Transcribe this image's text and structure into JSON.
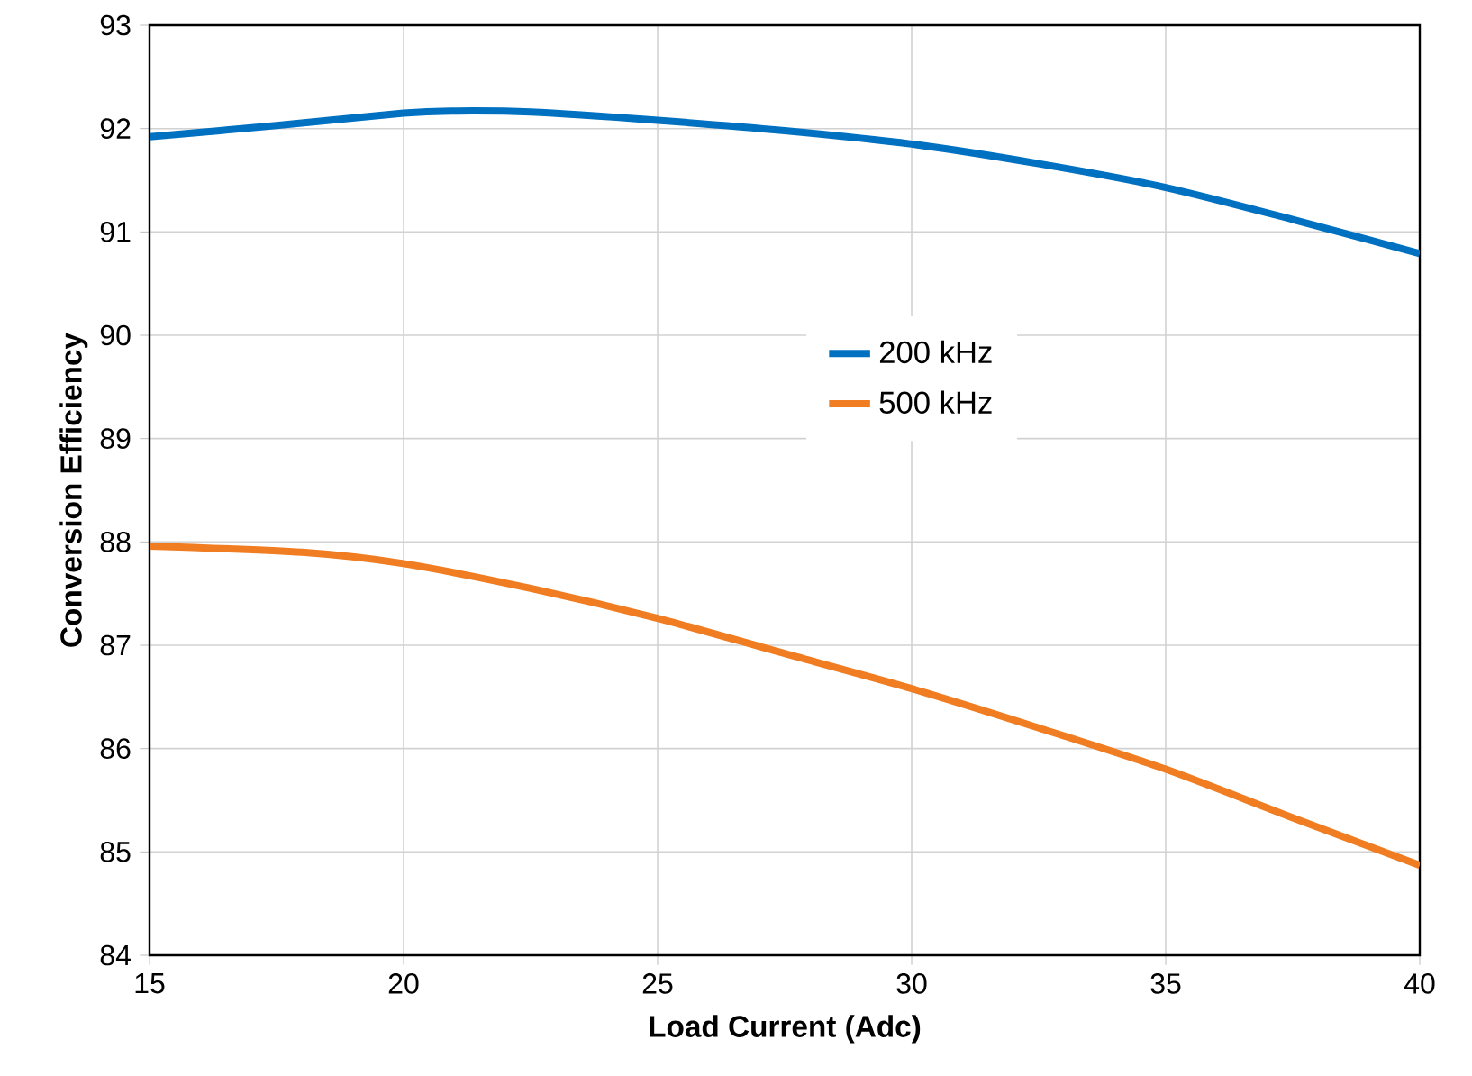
{
  "chart_data": {
    "type": "line",
    "xlabel": "Load Current (Adc)",
    "ylabel": "Conversion Efficiency",
    "xlim": [
      15,
      40
    ],
    "xticks": [
      15,
      20,
      25,
      30,
      35,
      40
    ],
    "ylim": [
      84,
      93
    ],
    "yticks": [
      84,
      85,
      86,
      87,
      88,
      89,
      90,
      91,
      92,
      93
    ],
    "grid": true,
    "legend": "center",
    "marker": "none",
    "line_style": "solid",
    "series": [
      {
        "name": "200 kHz",
        "color": "#0070c0",
        "x": [
          15,
          17.5,
          20,
          21,
          22.5,
          25,
          27.5,
          30,
          32.5,
          35,
          37.5,
          40
        ],
        "values": [
          91.92,
          92.03,
          92.15,
          92.17,
          92.16,
          92.08,
          91.98,
          91.85,
          91.66,
          91.43,
          91.12,
          90.79
        ]
      },
      {
        "name": "500 kHz",
        "color": "#f07d22",
        "x": [
          15,
          18,
          20,
          22.5,
          25,
          27.5,
          30,
          32.5,
          35,
          37.5,
          40
        ],
        "values": [
          87.96,
          87.9,
          87.79,
          87.55,
          87.26,
          86.92,
          86.58,
          86.2,
          85.8,
          85.33,
          84.87
        ]
      }
    ]
  }
}
